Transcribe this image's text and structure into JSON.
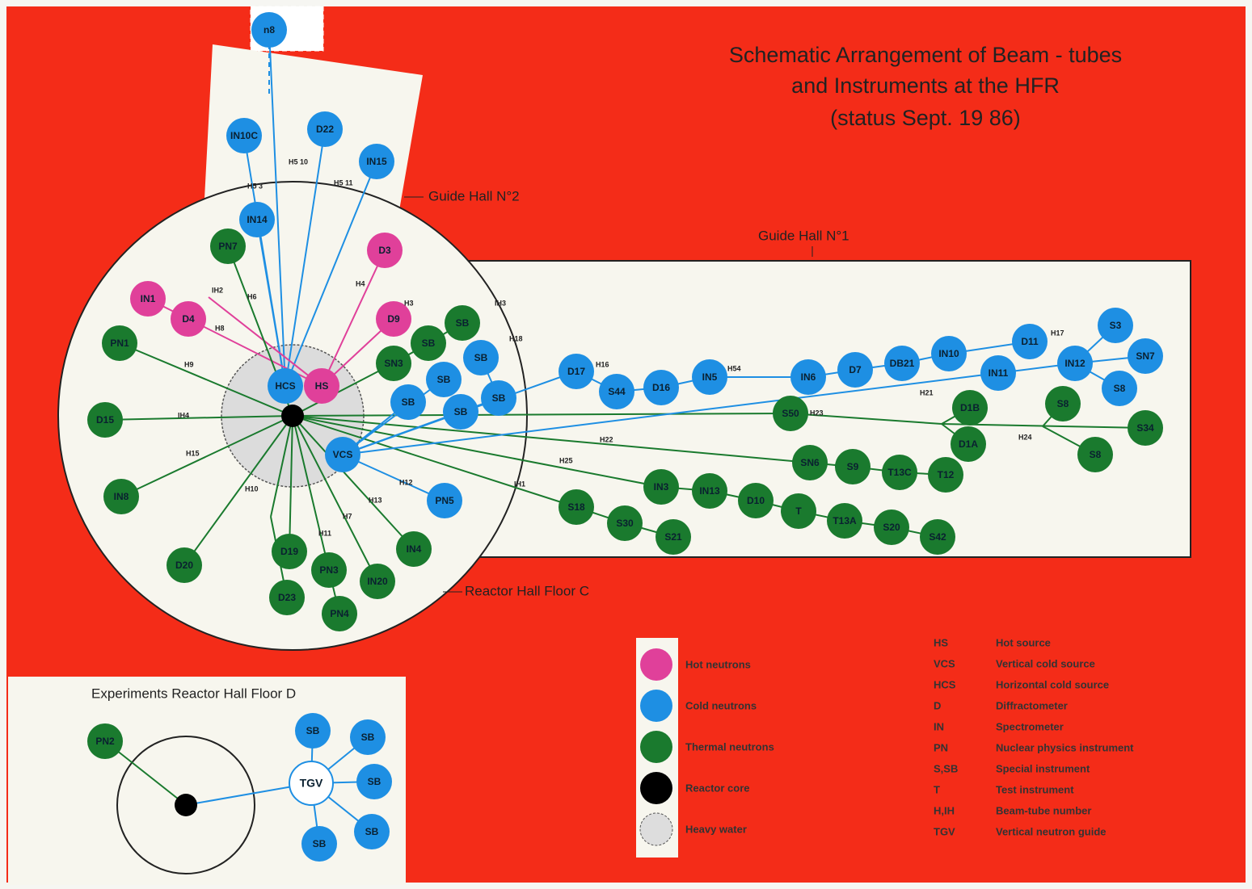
{
  "title": [
    "Schematic Arrangement of Beam - tubes",
    "and Instruments at the HFR",
    "(status Sept. 19 86)"
  ],
  "areas": {
    "guide_hall_2": "Guide Hall N°2",
    "guide_hall_1": "Guide Hall N°1",
    "floor_c": "Reactor Hall Floor C",
    "floor_d": "Experiments Reactor Hall Floor D"
  },
  "colors": {
    "hot": "#e0409a",
    "cold": "#1e8fe3",
    "thermal": "#1a7a2e",
    "core": "#000000",
    "heavy_water": "#dddddd"
  },
  "nodes": [
    {
      "label": "n8",
      "color": "#1e8fe3"
    },
    {
      "label": "IN10C",
      "color": "#1e8fe3"
    },
    {
      "label": "D22",
      "color": "#1e8fe3"
    },
    {
      "label": "IN15",
      "color": "#1e8fe3"
    },
    {
      "label": "IN14",
      "color": "#1e8fe3"
    },
    {
      "label": "PN7",
      "color": "#1a7a2e"
    },
    {
      "label": "D3",
      "color": "#e0409a"
    },
    {
      "label": "IN1",
      "color": "#e0409a"
    },
    {
      "label": "D4",
      "color": "#e0409a"
    },
    {
      "label": "D9",
      "color": "#e0409a"
    },
    {
      "label": "PN1",
      "color": "#1a7a2e"
    },
    {
      "label": "SB",
      "color": "#1a7a2e"
    },
    {
      "label": "SB",
      "color": "#1a7a2e"
    },
    {
      "label": "SN3",
      "color": "#1a7a2e"
    },
    {
      "label": "SB",
      "color": "#1e8fe3"
    },
    {
      "label": "SB",
      "color": "#1e8fe3"
    },
    {
      "label": "HCS",
      "color": "#1e8fe3"
    },
    {
      "label": "HS",
      "color": "#e0409a"
    },
    {
      "label": "SB",
      "color": "#1e8fe3"
    },
    {
      "label": "SB",
      "color": "#1e8fe3"
    },
    {
      "label": "SB",
      "color": "#1e8fe3"
    },
    {
      "label": "D15",
      "color": "#1a7a2e"
    },
    {
      "label": "VCS",
      "color": "#1e8fe3"
    },
    {
      "label": "IN8",
      "color": "#1a7a2e"
    },
    {
      "label": "D17",
      "color": "#1e8fe3"
    },
    {
      "label": "S44",
      "color": "#1e8fe3"
    },
    {
      "label": "D16",
      "color": "#1e8fe3"
    },
    {
      "label": "IN5",
      "color": "#1e8fe3"
    },
    {
      "label": "IN6",
      "color": "#1e8fe3"
    },
    {
      "label": "D7",
      "color": "#1e8fe3"
    },
    {
      "label": "DB21",
      "color": "#1e8fe3"
    },
    {
      "label": "IN10",
      "color": "#1e8fe3"
    },
    {
      "label": "D11",
      "color": "#1e8fe3"
    },
    {
      "label": "S3",
      "color": "#1e8fe3"
    },
    {
      "label": "IN12",
      "color": "#1e8fe3"
    },
    {
      "label": "SN7",
      "color": "#1e8fe3"
    },
    {
      "label": "IN11",
      "color": "#1e8fe3"
    },
    {
      "label": "S8",
      "color": "#1e8fe3"
    },
    {
      "label": "S50",
      "color": "#1a7a2e"
    },
    {
      "label": "D1B",
      "color": "#1a7a2e"
    },
    {
      "label": "D1A",
      "color": "#1a7a2e"
    },
    {
      "label": "S8",
      "color": "#1a7a2e"
    },
    {
      "label": "S34",
      "color": "#1a7a2e"
    },
    {
      "label": "S8",
      "color": "#1a7a2e"
    },
    {
      "label": "SN6",
      "color": "#1a7a2e"
    },
    {
      "label": "S9",
      "color": "#1a7a2e"
    },
    {
      "label": "T13C",
      "color": "#1a7a2e"
    },
    {
      "label": "T12",
      "color": "#1a7a2e"
    },
    {
      "label": "IN3",
      "color": "#1a7a2e"
    },
    {
      "label": "IN13",
      "color": "#1a7a2e"
    },
    {
      "label": "D10",
      "color": "#1a7a2e"
    },
    {
      "label": "T",
      "color": "#1a7a2e"
    },
    {
      "label": "T13A",
      "color": "#1a7a2e"
    },
    {
      "label": "S20",
      "color": "#1a7a2e"
    },
    {
      "label": "S42",
      "color": "#1a7a2e"
    },
    {
      "label": "S18",
      "color": "#1a7a2e"
    },
    {
      "label": "S30",
      "color": "#1a7a2e"
    },
    {
      "label": "S21",
      "color": "#1a7a2e"
    },
    {
      "label": "PN5",
      "color": "#1e8fe3"
    },
    {
      "label": "IN4",
      "color": "#1a7a2e"
    },
    {
      "label": "IN20",
      "color": "#1a7a2e"
    },
    {
      "label": "D19",
      "color": "#1a7a2e"
    },
    {
      "label": "PN3",
      "color": "#1a7a2e"
    },
    {
      "label": "PN4",
      "color": "#1a7a2e"
    },
    {
      "label": "D20",
      "color": "#1a7a2e"
    },
    {
      "label": "D23",
      "color": "#1a7a2e"
    },
    {
      "label": "PN2",
      "color": "#1a7a2e"
    },
    {
      "label": "SB",
      "color": "#1e8fe3"
    },
    {
      "label": "SB",
      "color": "#1e8fe3"
    },
    {
      "label": "SB",
      "color": "#1e8fe3"
    },
    {
      "label": "SB",
      "color": "#1e8fe3"
    },
    {
      "label": "SB",
      "color": "#1e8fe3"
    },
    {
      "label": "TGV",
      "color": "#ffffff"
    }
  ],
  "beam_tubes": [
    "H5 3",
    "H5 10",
    "H5 11",
    "IH2",
    "H6",
    "H4",
    "H3",
    "IH3",
    "H8",
    "H18",
    "H9",
    "IH4",
    "H15",
    "H17",
    "H16",
    "H54",
    "H21",
    "H23",
    "H22",
    "H24",
    "H25",
    "IH1",
    "H12",
    "H13",
    "H7",
    "H11",
    "H10"
  ],
  "legend": [
    "Hot neutrons",
    "Cold neutrons",
    "Thermal neutrons",
    "Reactor core",
    "Heavy water"
  ],
  "abbreviations": [
    [
      "HS",
      "Hot source"
    ],
    [
      "VCS",
      "Vertical cold source"
    ],
    [
      "HCS",
      "Horizontal cold source"
    ],
    [
      "D",
      "Diffractometer"
    ],
    [
      "IN",
      "Spectrometer"
    ],
    [
      "PN",
      "Nuclear physics instrument"
    ],
    [
      "S,SB",
      "Special instrument"
    ],
    [
      "T",
      "Test instrument"
    ],
    [
      "H,IH",
      "Beam-tube number"
    ],
    [
      "TGV",
      "Vertical neutron guide"
    ]
  ]
}
